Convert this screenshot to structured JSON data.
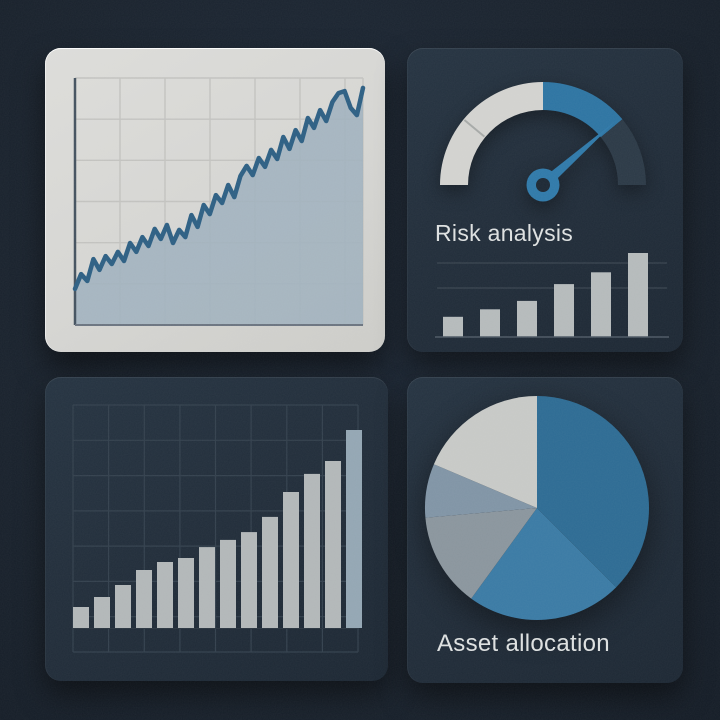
{
  "colors": {
    "background": "#19222d",
    "card_dark": "#212d3a",
    "card_light": "#d5d5d2",
    "accent_blue": "#2d74a2",
    "text": "#dde0e0"
  },
  "cards": {
    "risk": {
      "title": "Risk analysis"
    },
    "allocation": {
      "title": "Asset allocation"
    }
  },
  "chart_data": [
    {
      "id": "price-trend",
      "type": "area",
      "title": "",
      "xlabel": "",
      "ylabel": "",
      "ylim": [
        0,
        100
      ],
      "grid": true,
      "legend": "none",
      "line_color": "#2d5f83",
      "fill_color": "#9fb0bd",
      "values": [
        14.6,
        20.6,
        17.8,
        26.7,
        22.3,
        27.9,
        24.7,
        29.6,
        25.9,
        33.2,
        29.6,
        35.6,
        32,
        38.9,
        34.8,
        40.5,
        33.2,
        38.5,
        35.6,
        44.5,
        39.7,
        48.6,
        44.9,
        52.6,
        49.4,
        56.7,
        51.8,
        60.3,
        64.4,
        60.7,
        67.6,
        64,
        70.9,
        67.2,
        76.1,
        71.3,
        78.9,
        74.5,
        83.8,
        79.8,
        87,
        82.6,
        90.3,
        93.9,
        94.7,
        87.9,
        85,
        96
      ]
    },
    {
      "id": "risk-gauge",
      "type": "gauge",
      "title": "Risk analysis",
      "min": 0,
      "max": 1,
      "value": 0.77,
      "needle_color": "#2f79a9",
      "hub_hole_color": "#1c2834",
      "tick_positions": [
        0.22
      ],
      "segments": [
        {
          "from": 0,
          "to": 0.5,
          "color": "#d2d2cf"
        },
        {
          "from": 0.5,
          "to": 0.78,
          "color": "#2d74a2"
        },
        {
          "from": 0.78,
          "to": 1,
          "color": "#2b3946"
        }
      ]
    },
    {
      "id": "risk-mini-bars",
      "type": "bar",
      "title": "",
      "ylim": [
        0,
        100
      ],
      "grid": true,
      "legend": "none",
      "bar_color": "#b5babb",
      "values": [
        24,
        33,
        43,
        63,
        77,
        100
      ]
    },
    {
      "id": "growth-bars",
      "type": "bar",
      "title": "",
      "ylim": [
        0,
        100
      ],
      "grid": true,
      "legend": "none",
      "bar_color": "#b2b7b8",
      "highlight_last_color": "#93a6b3",
      "values": [
        9.4,
        13.9,
        19.3,
        26,
        29.6,
        31.4,
        36.3,
        39.5,
        43,
        49.8,
        61,
        69.1,
        74.9,
        88.8
      ]
    },
    {
      "id": "asset-pie",
      "type": "pie",
      "title": "Asset allocation",
      "legend": "none",
      "start_angle_deg": 0,
      "direction": "clockwise",
      "slices": [
        {
          "value": 37.5,
          "color": "#2d6b93"
        },
        {
          "value": 22.5,
          "color": "#3a7aa4"
        },
        {
          "value": 13.6,
          "color": "#8a959d"
        },
        {
          "value": 7.8,
          "color": "#8094a5"
        },
        {
          "value": 18.6,
          "color": "#c7c9c6"
        }
      ]
    }
  ]
}
